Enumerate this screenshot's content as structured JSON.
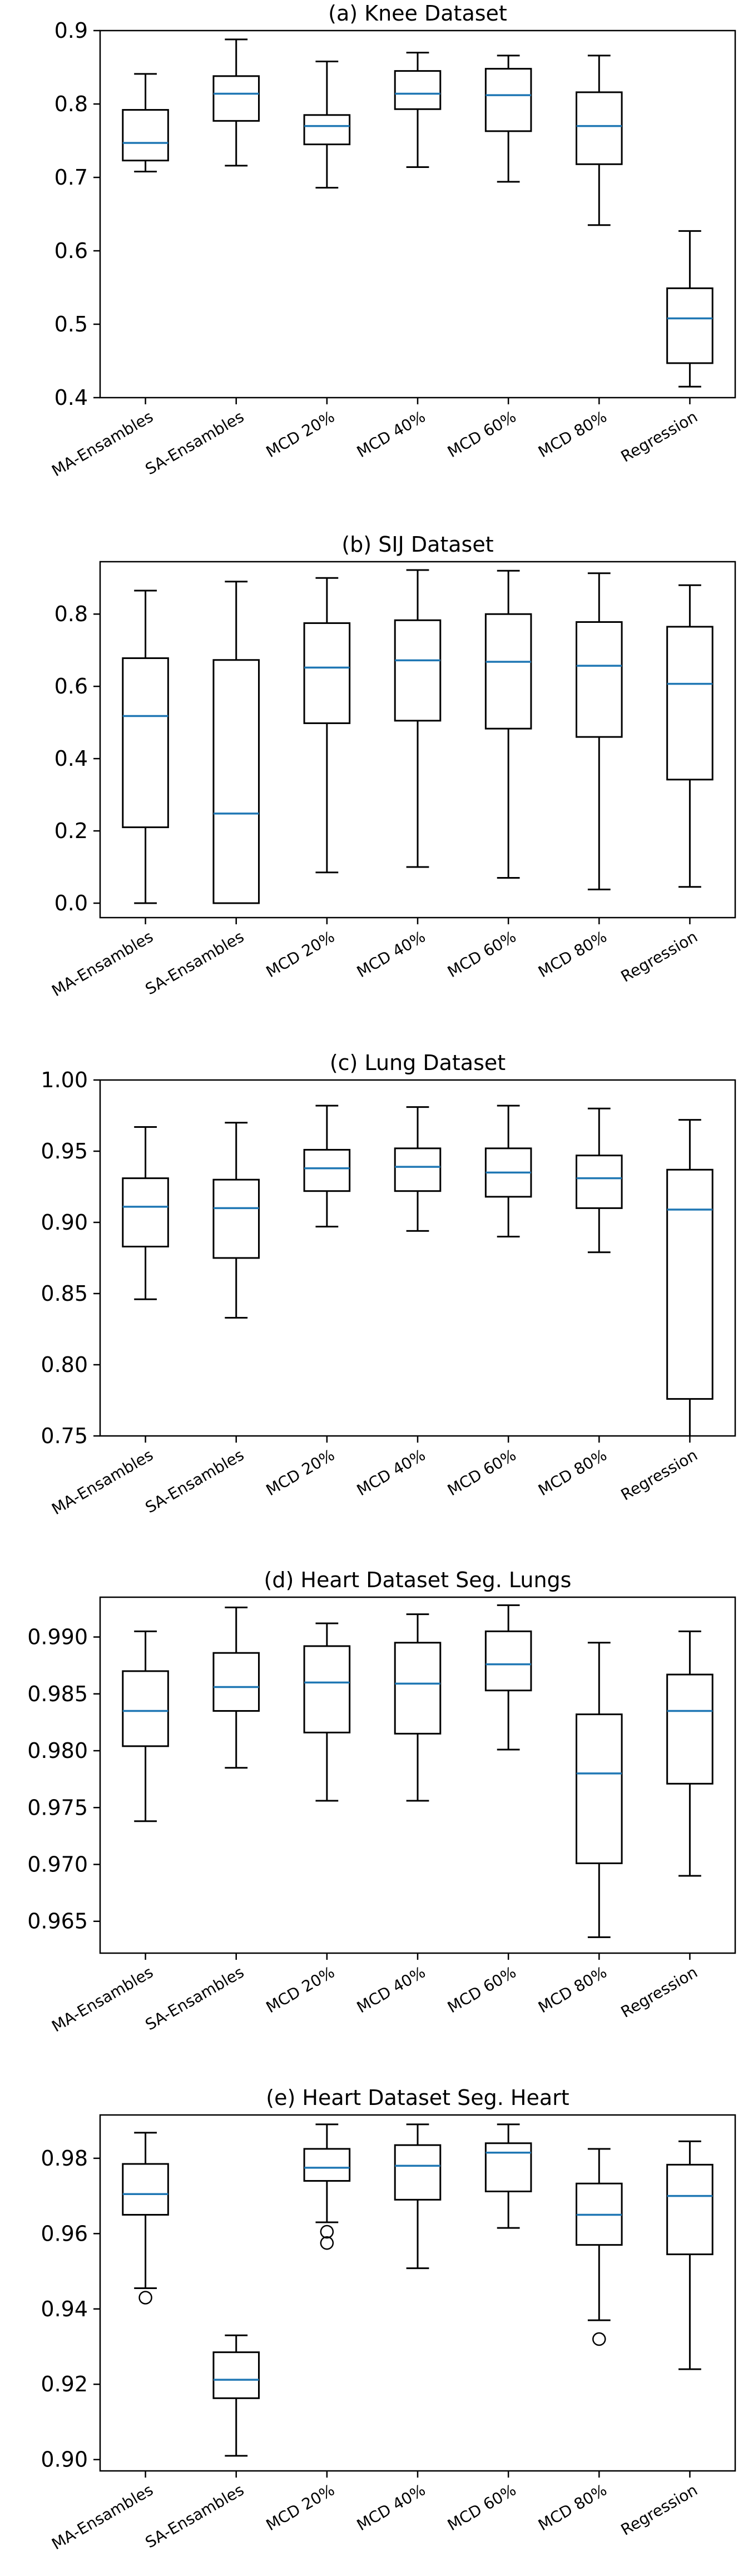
{
  "colors": {
    "median": "#1f77b4",
    "box": "#000000"
  },
  "chart_data": [
    {
      "type": "boxplot",
      "title": "(a) Knee Dataset",
      "categories": [
        "MA-Ensambles",
        "SA-Ensambles",
        "MCD 20%",
        "MCD 40%",
        "MCD 60%",
        "MCD 80%",
        "Regression"
      ],
      "ylim": [
        0.4,
        0.9
      ],
      "yticks": [
        0.4,
        0.5,
        0.6,
        0.7,
        0.8,
        0.9
      ],
      "ytick_labels": [
        "0.4",
        "0.5",
        "0.6",
        "0.7",
        "0.8",
        "0.9"
      ],
      "grid": false,
      "boxes": [
        {
          "whislo": 0.708,
          "q1": 0.723,
          "med": 0.747,
          "q3": 0.792,
          "whishi": 0.841,
          "fliers": []
        },
        {
          "whislo": 0.716,
          "q1": 0.777,
          "med": 0.814,
          "q3": 0.838,
          "whishi": 0.888,
          "fliers": []
        },
        {
          "whislo": 0.686,
          "q1": 0.745,
          "med": 0.77,
          "q3": 0.785,
          "whishi": 0.858,
          "fliers": []
        },
        {
          "whislo": 0.714,
          "q1": 0.793,
          "med": 0.814,
          "q3": 0.845,
          "whishi": 0.87,
          "fliers": []
        },
        {
          "whislo": 0.694,
          "q1": 0.763,
          "med": 0.812,
          "q3": 0.848,
          "whishi": 0.866,
          "fliers": []
        },
        {
          "whislo": 0.635,
          "q1": 0.718,
          "med": 0.77,
          "q3": 0.816,
          "whishi": 0.866,
          "fliers": []
        },
        {
          "whislo": 0.415,
          "q1": 0.447,
          "med": 0.508,
          "q3": 0.549,
          "whishi": 0.627,
          "fliers": []
        }
      ]
    },
    {
      "type": "boxplot",
      "title": "(b) SIJ Dataset",
      "categories": [
        "MA-Ensambles",
        "SA-Ensambles",
        "MCD 20%",
        "MCD 40%",
        "MCD 60%",
        "MCD 80%",
        "Regression"
      ],
      "ylim": [
        -0.04,
        0.945
      ],
      "yticks": [
        0.0,
        0.2,
        0.4,
        0.6,
        0.8
      ],
      "ytick_labels": [
        "0.0",
        "0.2",
        "0.4",
        "0.6",
        "0.8"
      ],
      "grid": false,
      "boxes": [
        {
          "whislo": 0.0,
          "q1": 0.21,
          "med": 0.518,
          "q3": 0.678,
          "whishi": 0.865,
          "fliers": []
        },
        {
          "whislo": 0.0,
          "q1": 0.0,
          "med": 0.248,
          "q3": 0.673,
          "whishi": 0.89,
          "fliers": []
        },
        {
          "whislo": 0.085,
          "q1": 0.498,
          "med": 0.652,
          "q3": 0.775,
          "whishi": 0.9,
          "fliers": []
        },
        {
          "whislo": 0.1,
          "q1": 0.505,
          "med": 0.672,
          "q3": 0.783,
          "whishi": 0.922,
          "fliers": []
        },
        {
          "whislo": 0.07,
          "q1": 0.483,
          "med": 0.668,
          "q3": 0.8,
          "whishi": 0.92,
          "fliers": []
        },
        {
          "whislo": 0.038,
          "q1": 0.46,
          "med": 0.657,
          "q3": 0.778,
          "whishi": 0.913,
          "fliers": []
        },
        {
          "whislo": 0.045,
          "q1": 0.342,
          "med": 0.607,
          "q3": 0.765,
          "whishi": 0.88,
          "fliers": []
        }
      ]
    },
    {
      "type": "boxplot",
      "title": "(c) Lung Dataset",
      "categories": [
        "MA-Ensambles",
        "SA-Ensambles",
        "MCD 20%",
        "MCD 40%",
        "MCD 60%",
        "MCD 80%",
        "Regression"
      ],
      "ylim": [
        0.75,
        1.0
      ],
      "yticks": [
        0.75,
        0.8,
        0.85,
        0.9,
        0.95,
        1.0
      ],
      "ytick_labels": [
        "0.75",
        "0.80",
        "0.85",
        "0.90",
        "0.95",
        "1.00"
      ],
      "grid": false,
      "boxes": [
        {
          "whislo": 0.846,
          "q1": 0.883,
          "med": 0.911,
          "q3": 0.931,
          "whishi": 0.967,
          "fliers": []
        },
        {
          "whislo": 0.833,
          "q1": 0.875,
          "med": 0.91,
          "q3": 0.93,
          "whishi": 0.97,
          "fliers": []
        },
        {
          "whislo": 0.897,
          "q1": 0.922,
          "med": 0.938,
          "q3": 0.951,
          "whishi": 0.982,
          "fliers": []
        },
        {
          "whislo": 0.894,
          "q1": 0.922,
          "med": 0.939,
          "q3": 0.952,
          "whishi": 0.981,
          "fliers": []
        },
        {
          "whislo": 0.89,
          "q1": 0.918,
          "med": 0.935,
          "q3": 0.952,
          "whishi": 0.982,
          "fliers": []
        },
        {
          "whislo": 0.879,
          "q1": 0.91,
          "med": 0.931,
          "q3": 0.947,
          "whishi": 0.98,
          "fliers": []
        },
        {
          "whislo": 0.74,
          "q1": 0.776,
          "med": 0.909,
          "q3": 0.937,
          "whishi": 0.972,
          "fliers": []
        }
      ]
    },
    {
      "type": "boxplot",
      "title": "(d) Heart Dataset Seg. Lungs",
      "categories": [
        "MA-Ensambles",
        "SA-Ensambles",
        "MCD 20%",
        "MCD 40%",
        "MCD 60%",
        "MCD 80%",
        "Regression"
      ],
      "ylim": [
        0.9622,
        0.9935
      ],
      "yticks": [
        0.965,
        0.97,
        0.975,
        0.98,
        0.985,
        0.99
      ],
      "ytick_labels": [
        "0.965",
        "0.970",
        "0.975",
        "0.980",
        "0.985",
        "0.990"
      ],
      "grid": false,
      "boxes": [
        {
          "whislo": 0.9738,
          "q1": 0.9804,
          "med": 0.9835,
          "q3": 0.987,
          "whishi": 0.9905,
          "fliers": []
        },
        {
          "whislo": 0.9785,
          "q1": 0.9835,
          "med": 0.9856,
          "q3": 0.9886,
          "whishi": 0.9926,
          "fliers": []
        },
        {
          "whislo": 0.9756,
          "q1": 0.9816,
          "med": 0.986,
          "q3": 0.9892,
          "whishi": 0.9912,
          "fliers": []
        },
        {
          "whislo": 0.9756,
          "q1": 0.9815,
          "med": 0.9859,
          "q3": 0.9895,
          "whishi": 0.992,
          "fliers": []
        },
        {
          "whislo": 0.9801,
          "q1": 0.9853,
          "med": 0.9876,
          "q3": 0.9905,
          "whishi": 0.9928,
          "fliers": []
        },
        {
          "whislo": 0.9636,
          "q1": 0.9701,
          "med": 0.978,
          "q3": 0.9832,
          "whishi": 0.9895,
          "fliers": []
        },
        {
          "whislo": 0.969,
          "q1": 0.9771,
          "med": 0.9835,
          "q3": 0.9867,
          "whishi": 0.9905,
          "fliers": []
        }
      ]
    },
    {
      "type": "boxplot",
      "title": "(e) Heart Dataset Seg. Heart",
      "categories": [
        "MA-Ensambles",
        "SA-Ensambles",
        "MCD 20%",
        "MCD 40%",
        "MCD 60%",
        "MCD 80%",
        "Regression"
      ],
      "ylim": [
        0.897,
        0.9915
      ],
      "yticks": [
        0.9,
        0.92,
        0.94,
        0.96,
        0.98
      ],
      "ytick_labels": [
        "0.90",
        "0.92",
        "0.94",
        "0.96",
        "0.98"
      ],
      "grid": false,
      "boxes": [
        {
          "whislo": 0.9455,
          "q1": 0.965,
          "med": 0.9705,
          "q3": 0.9785,
          "whishi": 0.9868,
          "fliers": [
            0.943
          ]
        },
        {
          "whislo": 0.901,
          "q1": 0.9163,
          "med": 0.9212,
          "q3": 0.9285,
          "whishi": 0.933,
          "fliers": []
        },
        {
          "whislo": 0.963,
          "q1": 0.974,
          "med": 0.9775,
          "q3": 0.9825,
          "whishi": 0.989,
          "fliers": [
            0.9605,
            0.9575
          ]
        },
        {
          "whislo": 0.9508,
          "q1": 0.969,
          "med": 0.978,
          "q3": 0.9835,
          "whishi": 0.989,
          "fliers": []
        },
        {
          "whislo": 0.9615,
          "q1": 0.9712,
          "med": 0.9815,
          "q3": 0.984,
          "whishi": 0.989,
          "fliers": []
        },
        {
          "whislo": 0.937,
          "q1": 0.957,
          "med": 0.965,
          "q3": 0.9733,
          "whishi": 0.9825,
          "fliers": [
            0.932
          ]
        },
        {
          "whislo": 0.924,
          "q1": 0.9545,
          "med": 0.97,
          "q3": 0.9783,
          "whishi": 0.9845,
          "fliers": []
        }
      ]
    }
  ]
}
